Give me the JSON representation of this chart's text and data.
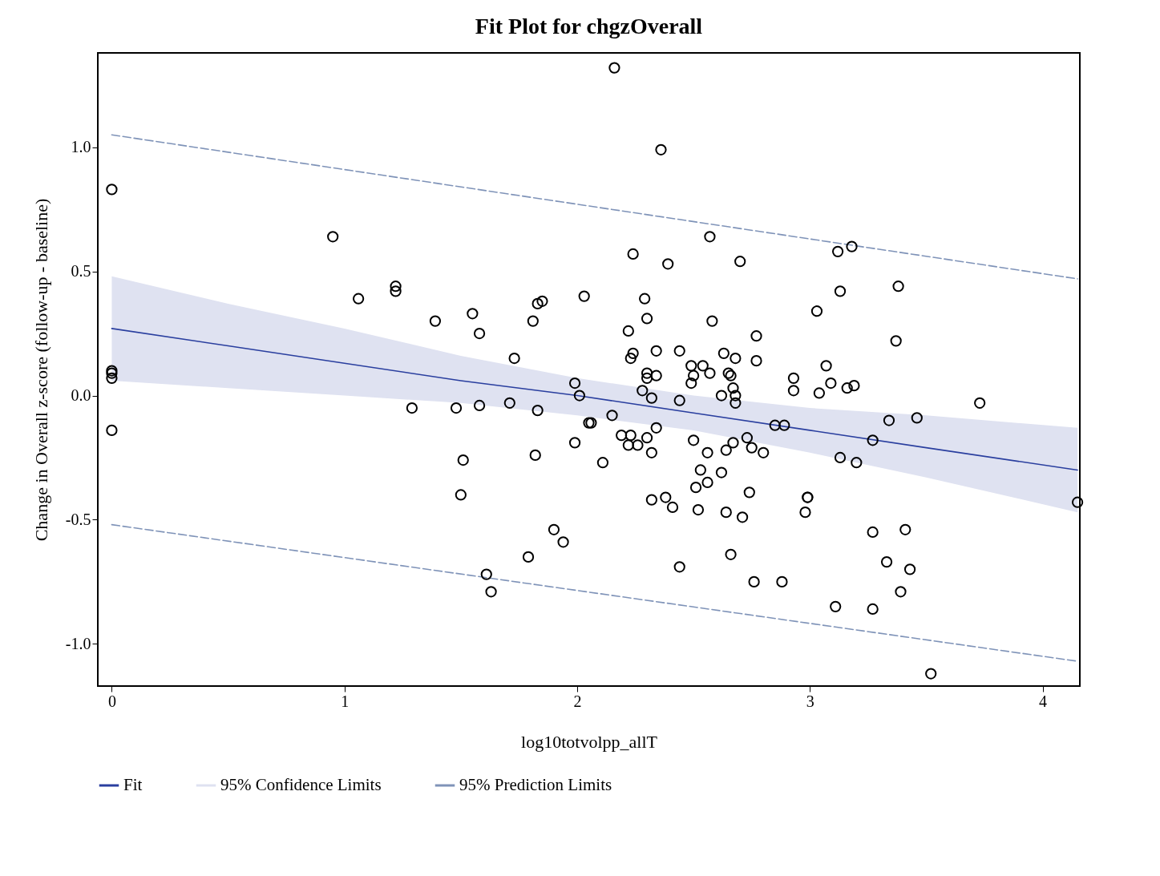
{
  "chart_data": {
    "type": "scatter",
    "title": "Fit Plot for chgzOverall",
    "xlabel": "log10totvolpp_allT",
    "ylabel": "Change in Overall z-score (follow-up - baseline)",
    "xlim": [
      -0.06,
      4.16
    ],
    "ylim": [
      -1.17,
      1.38
    ],
    "xticks": [
      0,
      1,
      2,
      3,
      4
    ],
    "yticks": [
      {
        "value": -1,
        "label": "-1.0"
      },
      {
        "value": -0.5,
        "label": "-0.5"
      },
      {
        "value": 0,
        "label": "0.0"
      },
      {
        "value": 0.5,
        "label": "0.5"
      },
      {
        "value": 1,
        "label": "1.0"
      }
    ],
    "grid": false,
    "legend": "bottom",
    "annotations": [
      "95% Confidence Limits"
    ],
    "series": [
      {
        "type": "line",
        "name": "Fit",
        "color": "#2a3f9f",
        "line_style": "solid",
        "x": [
          0,
          0.5,
          1,
          1.5,
          2,
          2.5,
          3,
          3.5,
          4.15
        ],
        "values": [
          0.27,
          0.2,
          0.13,
          0.06,
          0.0,
          -0.07,
          -0.14,
          -0.21,
          -0.3
        ],
        "lower": [
          0.06,
          0.03,
          0.0,
          -0.03,
          -0.08,
          -0.14,
          -0.23,
          -0.33,
          -0.47
        ],
        "upper": [
          0.48,
          0.37,
          0.27,
          0.16,
          0.07,
          0.0,
          -0.05,
          -0.08,
          -0.13
        ]
      },
      {
        "type": "line",
        "name": "95% Prediction Limits",
        "color": "#7f93b8",
        "line_style": "dashed",
        "x": [
          0,
          4.15
        ],
        "values": [
          1.05,
          0.47
        ]
      },
      {
        "type": "line",
        "color": "#7f93b8",
        "line_style": "dashed",
        "x": [
          0,
          4.15
        ],
        "values": [
          -0.52,
          -1.07
        ]
      },
      {
        "type": "scatter",
        "color": "#000000",
        "marker": "circle",
        "x": [
          0,
          0,
          0,
          0,
          0,
          0.95,
          1.06,
          1.22,
          1.22,
          1.29,
          1.39,
          1.48,
          1.55,
          1.58,
          1.58,
          1.51,
          1.5,
          1.61,
          1.63,
          1.71,
          1.73,
          1.79,
          1.81,
          1.82,
          1.83,
          1.83,
          1.85,
          1.9,
          1.94,
          1.99,
          1.99,
          2.01,
          2.03,
          2.05,
          2.06,
          2.11,
          2.15,
          2.16,
          2.19,
          2.22,
          2.23,
          2.22,
          2.23,
          2.24,
          2.24,
          2.26,
          2.28,
          2.29,
          2.3,
          2.3,
          2.3,
          2.3,
          2.32,
          2.32,
          2.32,
          2.34,
          2.34,
          2.34,
          2.36,
          2.38,
          2.39,
          2.41,
          2.44,
          2.44,
          2.44,
          2.49,
          2.49,
          2.5,
          2.5,
          2.51,
          2.52,
          2.53,
          2.54,
          2.56,
          2.57,
          2.56,
          2.57,
          2.58,
          2.62,
          2.62,
          2.63,
          2.64,
          2.64,
          2.65,
          2.66,
          2.66,
          2.67,
          2.67,
          2.68,
          2.68,
          2.68,
          2.7,
          2.71,
          2.73,
          2.74,
          2.75,
          2.76,
          2.77,
          2.77,
          2.8,
          2.85,
          2.88,
          2.89,
          2.93,
          2.93,
          2.99,
          2.99,
          2.98,
          3.03,
          3.04,
          3.07,
          3.09,
          3.11,
          3.12,
          3.13,
          3.13,
          3.16,
          3.18,
          3.19,
          3.2,
          3.27,
          3.27,
          3.27,
          3.33,
          3.34,
          3.37,
          3.38,
          3.39,
          3.41,
          3.43,
          3.46,
          3.52,
          3.73,
          4.15
        ],
        "values": [
          0.83,
          0.1,
          0.09,
          0.07,
          -0.14,
          0.64,
          0.39,
          0.44,
          0.42,
          -0.05,
          0.3,
          -0.05,
          0.33,
          0.25,
          -0.04,
          -0.26,
          -0.4,
          -0.72,
          -0.79,
          -0.03,
          0.15,
          -0.65,
          0.3,
          -0.24,
          -0.06,
          0.37,
          0.38,
          -0.54,
          -0.59,
          0.05,
          -0.19,
          0.0,
          0.4,
          -0.11,
          -0.11,
          -0.27,
          -0.08,
          1.32,
          -0.16,
          -0.2,
          -0.16,
          0.26,
          0.15,
          0.17,
          0.57,
          -0.2,
          0.02,
          0.39,
          0.09,
          0.07,
          0.31,
          -0.17,
          -0.01,
          -0.23,
          -0.42,
          0.18,
          0.08,
          -0.13,
          0.99,
          -0.41,
          0.53,
          -0.45,
          0.18,
          -0.02,
          -0.69,
          0.12,
          0.05,
          -0.18,
          0.08,
          -0.37,
          -0.46,
          -0.3,
          0.12,
          -0.23,
          0.09,
          -0.35,
          0.64,
          0.3,
          0.0,
          -0.31,
          0.17,
          -0.22,
          -0.47,
          0.09,
          0.08,
          -0.64,
          0.03,
          -0.19,
          0.15,
          0.0,
          -0.03,
          0.54,
          -0.49,
          -0.17,
          -0.39,
          -0.21,
          -0.75,
          0.24,
          0.14,
          -0.23,
          -0.12,
          -0.75,
          -0.12,
          0.07,
          0.02,
          -0.41,
          -0.41,
          -0.47,
          0.34,
          0.01,
          0.12,
          0.05,
          -0.85,
          0.58,
          0.42,
          -0.25,
          0.03,
          0.6,
          0.04,
          -0.27,
          -0.55,
          -0.18,
          -0.86,
          -0.67,
          -0.1,
          0.22,
          0.44,
          -0.79,
          -0.54,
          -0.7,
          -0.09,
          -1.12,
          -0.03,
          -0.43
        ]
      }
    ]
  }
}
